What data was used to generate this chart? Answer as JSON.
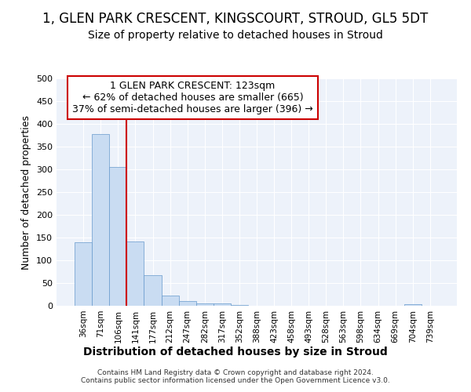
{
  "title": "1, GLEN PARK CRESCENT, KINGSCOURT, STROUD, GL5 5DT",
  "subtitle": "Size of property relative to detached houses in Stroud",
  "xlabel": "Distribution of detached houses by size in Stroud",
  "ylabel": "Number of detached properties",
  "bar_labels": [
    "36sqm",
    "71sqm",
    "106sqm",
    "141sqm",
    "177sqm",
    "212sqm",
    "247sqm",
    "282sqm",
    "317sqm",
    "352sqm",
    "388sqm",
    "423sqm",
    "458sqm",
    "493sqm",
    "528sqm",
    "563sqm",
    "598sqm",
    "634sqm",
    "669sqm",
    "704sqm",
    "739sqm"
  ],
  "bar_values": [
    140,
    378,
    305,
    142,
    68,
    23,
    10,
    6,
    5,
    1,
    0,
    0,
    0,
    0,
    0,
    0,
    0,
    0,
    0,
    4,
    0
  ],
  "bar_color": "#c9dcf2",
  "bar_edge_color": "#6699cc",
  "annotation_box_text": "1 GLEN PARK CRESCENT: 123sqm\n← 62% of detached houses are smaller (665)\n37% of semi-detached houses are larger (396) →",
  "annotation_box_color": "#ffffff",
  "annotation_box_edge_color": "#cc0000",
  "vline_color": "#cc0000",
  "ylim": [
    0,
    500
  ],
  "yticks": [
    0,
    50,
    100,
    150,
    200,
    250,
    300,
    350,
    400,
    450,
    500
  ],
  "background_color": "#edf2fa",
  "grid_color": "#ffffff",
  "footer_text": "Contains HM Land Registry data © Crown copyright and database right 2024.\nContains public sector information licensed under the Open Government Licence v3.0.",
  "title_fontsize": 12,
  "subtitle_fontsize": 10,
  "xlabel_fontsize": 10,
  "ylabel_fontsize": 9,
  "annotation_fontsize": 9
}
